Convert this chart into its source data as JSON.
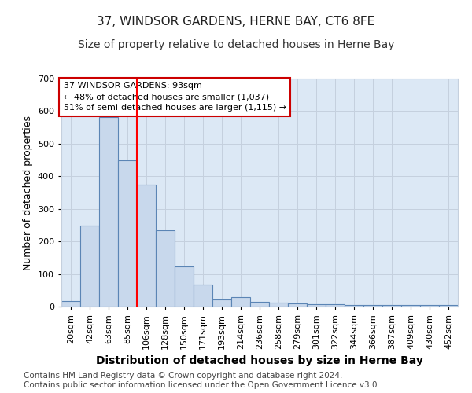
{
  "title1": "37, WINDSOR GARDENS, HERNE BAY, CT6 8FE",
  "title2": "Size of property relative to detached houses in Herne Bay",
  "xlabel": "Distribution of detached houses by size in Herne Bay",
  "ylabel": "Number of detached properties",
  "bar_labels": [
    "20sqm",
    "42sqm",
    "63sqm",
    "85sqm",
    "106sqm",
    "128sqm",
    "150sqm",
    "171sqm",
    "193sqm",
    "214sqm",
    "236sqm",
    "258sqm",
    "279sqm",
    "301sqm",
    "322sqm",
    "344sqm",
    "366sqm",
    "387sqm",
    "409sqm",
    "430sqm",
    "452sqm"
  ],
  "bar_values": [
    18,
    248,
    582,
    450,
    375,
    235,
    122,
    67,
    22,
    30,
    14,
    11,
    9,
    8,
    7,
    6,
    5,
    5,
    4,
    4,
    5
  ],
  "bar_color": "#c8d8ec",
  "bar_edge_color": "#5b85b5",
  "bar_edge_width": 0.8,
  "red_line_x": 3.5,
  "annotation_line1": "37 WINDSOR GARDENS: 93sqm",
  "annotation_line2": "← 48% of detached houses are smaller (1,037)",
  "annotation_line3": "51% of semi-detached houses are larger (1,115) →",
  "annotation_box_facecolor": "#ffffff",
  "annotation_box_edgecolor": "#cc0000",
  "ylim": [
    0,
    700
  ],
  "yticks": [
    0,
    100,
    200,
    300,
    400,
    500,
    600,
    700
  ],
  "grid_color": "#c5d0de",
  "fig_bg_color": "#ffffff",
  "plot_bg_color": "#dce8f5",
  "footer_text": "Contains HM Land Registry data © Crown copyright and database right 2024.\nContains public sector information licensed under the Open Government Licence v3.0.",
  "title1_fontsize": 11,
  "title2_fontsize": 10,
  "xlabel_fontsize": 10,
  "ylabel_fontsize": 9,
  "tick_fontsize": 8,
  "footer_fontsize": 7.5
}
